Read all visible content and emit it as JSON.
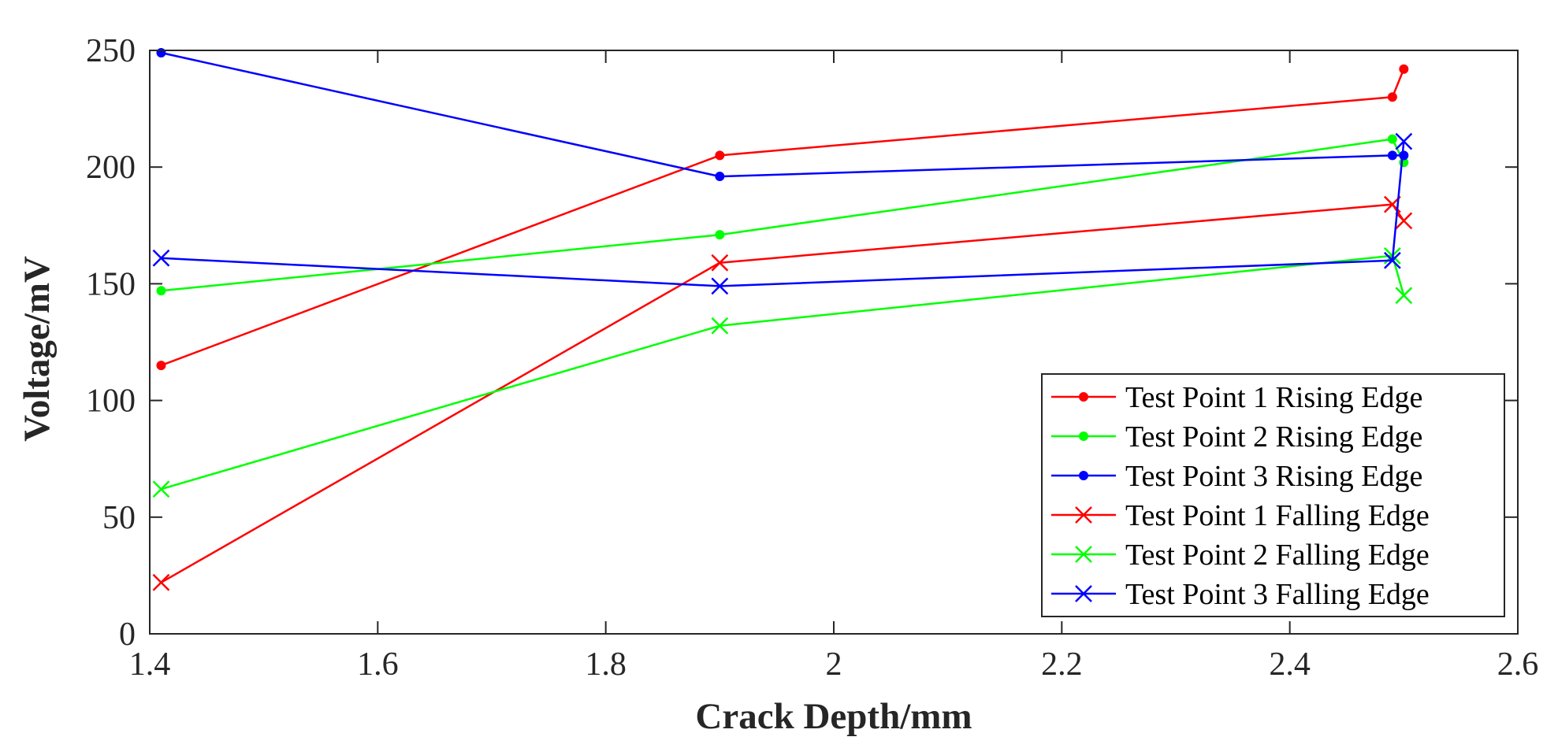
{
  "chart_data": {
    "type": "line",
    "xlabel": "Crack Depth/mm",
    "ylabel": "Voltage/mV",
    "xlim": [
      1.4,
      2.6
    ],
    "ylim": [
      0,
      250
    ],
    "xticks": [
      "1.4",
      "1.6",
      "1.8",
      "2",
      "2.2",
      "2.4",
      "2.6"
    ],
    "yticks": [
      "0",
      "50",
      "100",
      "150",
      "200",
      "250"
    ],
    "grid": false,
    "legend_position": "bottom-right",
    "series": [
      {
        "name": "Test Point 1 Rising Edge",
        "color": "#ff0000",
        "marker": "dot",
        "x": [
          1.41,
          1.9,
          2.49,
          2.5
        ],
        "y": [
          115,
          205,
          230,
          242
        ]
      },
      {
        "name": "Test Point 2 Rising Edge",
        "color": "#00ff00",
        "marker": "dot",
        "x": [
          1.41,
          1.9,
          2.49,
          2.5
        ],
        "y": [
          147,
          171,
          212,
          202
        ]
      },
      {
        "name": "Test Point 3 Rising Edge",
        "color": "#0000ff",
        "marker": "dot",
        "x": [
          1.41,
          1.9,
          2.49,
          2.5
        ],
        "y": [
          249,
          196,
          205,
          205
        ]
      },
      {
        "name": "Test Point 1 Falling Edge",
        "color": "#ff0000",
        "marker": "x",
        "x": [
          1.41,
          1.9,
          2.49,
          2.5
        ],
        "y": [
          22,
          159,
          184,
          177
        ]
      },
      {
        "name": "Test Point 2 Falling Edge",
        "color": "#00ff00",
        "marker": "x",
        "x": [
          1.41,
          1.9,
          2.49,
          2.5
        ],
        "y": [
          62,
          132,
          162,
          145
        ]
      },
      {
        "name": "Test Point 3 Falling Edge",
        "color": "#0000ff",
        "marker": "x",
        "x": [
          1.41,
          1.9,
          2.49,
          2.5
        ],
        "y": [
          161,
          149,
          160,
          211
        ]
      }
    ]
  }
}
